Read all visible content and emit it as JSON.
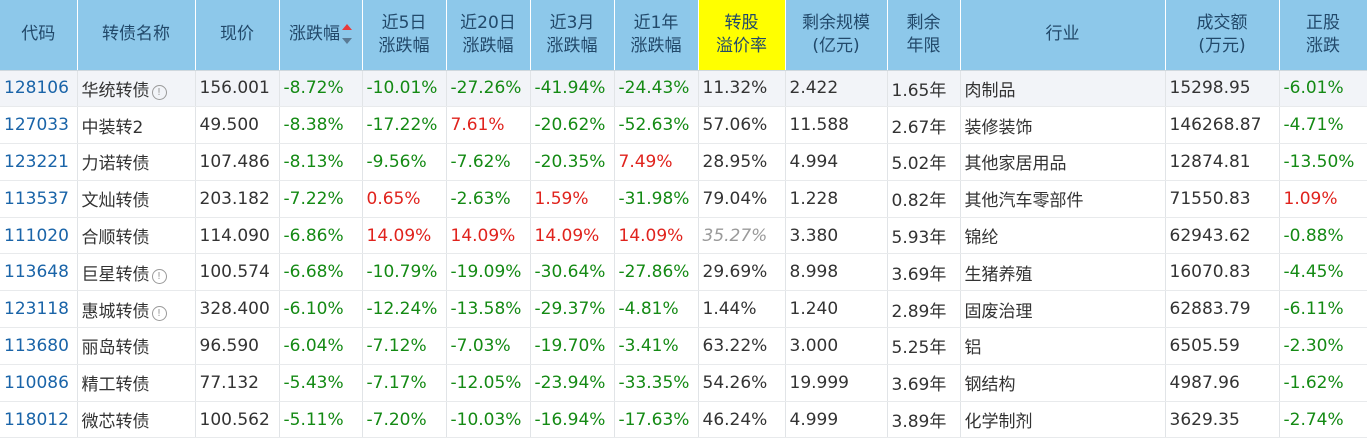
{
  "headers": [
    {
      "label": "代码"
    },
    {
      "label": "转债名称"
    },
    {
      "label": "现价"
    },
    {
      "label": "涨跌幅",
      "sort": "desc"
    },
    {
      "label": "近5日 涨跌幅"
    },
    {
      "label": "近20日 涨跌幅"
    },
    {
      "label": "近3月 涨跌幅"
    },
    {
      "label": "近1年 涨跌幅"
    },
    {
      "label": "转股 溢价率",
      "highlight": "#ffff00"
    },
    {
      "label": "剩余规模 (亿元)"
    },
    {
      "label": "剩余 年限"
    },
    {
      "label": "行业"
    },
    {
      "label": "成交额 (万元)"
    },
    {
      "label": "正股 涨跌"
    }
  ],
  "rows": [
    {
      "code": "128106",
      "name": "华统转债",
      "info": true,
      "price": "156.001",
      "chg": "-8.72%",
      "chg5d": "-10.01%",
      "chg20d": "-27.26%",
      "chg3m": "-41.94%",
      "chg1y": "-24.43%",
      "premium": "11.32%",
      "scale": "2.422",
      "years": "1.65年",
      "industry": "肉制品",
      "turnover": "15298.95",
      "stock_chg": "-6.01%"
    },
    {
      "code": "127033",
      "name": "中装转2",
      "info": false,
      "price": "49.500",
      "chg": "-8.38%",
      "chg5d": "-17.22%",
      "chg20d": "7.61%",
      "chg3m": "-20.62%",
      "chg1y": "-52.63%",
      "premium": "57.06%",
      "scale": "11.588",
      "years": "2.67年",
      "industry": "装修装饰",
      "turnover": "146268.87",
      "stock_chg": "-4.71%"
    },
    {
      "code": "123221",
      "name": "力诺转债",
      "info": false,
      "price": "107.486",
      "chg": "-8.13%",
      "chg5d": "-9.56%",
      "chg20d": "-7.62%",
      "chg3m": "-20.35%",
      "chg1y": "7.49%",
      "premium": "28.95%",
      "scale": "4.994",
      "years": "5.02年",
      "industry": "其他家居用品",
      "turnover": "12874.81",
      "stock_chg": "-13.50%"
    },
    {
      "code": "113537",
      "name": "文灿转债",
      "info": false,
      "price": "203.182",
      "chg": "-7.22%",
      "chg5d": "0.65%",
      "chg20d": "-2.63%",
      "chg3m": "1.59%",
      "chg1y": "-31.98%",
      "premium": "79.04%",
      "scale": "1.228",
      "years": "0.82年",
      "industry": "其他汽车零部件",
      "turnover": "71550.83",
      "stock_chg": "1.09%"
    },
    {
      "code": "111020",
      "name": "合顺转债",
      "info": false,
      "price": "114.090",
      "chg": "-6.86%",
      "chg5d": "14.09%",
      "chg20d": "14.09%",
      "chg3m": "14.09%",
      "chg1y": "14.09%",
      "premium": "35.27%",
      "premium_muted": true,
      "scale": "3.380",
      "years": "5.93年",
      "industry": "锦纶",
      "turnover": "62943.62",
      "stock_chg": "-0.88%"
    },
    {
      "code": "113648",
      "name": "巨星转债",
      "info": true,
      "price": "100.574",
      "chg": "-6.68%",
      "chg5d": "-10.79%",
      "chg20d": "-19.09%",
      "chg3m": "-30.64%",
      "chg1y": "-27.86%",
      "premium": "29.69%",
      "scale": "8.998",
      "years": "3.69年",
      "industry": "生猪养殖",
      "turnover": "16070.83",
      "stock_chg": "-4.45%"
    },
    {
      "code": "123118",
      "name": "惠城转债",
      "info": true,
      "price": "328.400",
      "chg": "-6.10%",
      "chg5d": "-12.24%",
      "chg20d": "-13.58%",
      "chg3m": "-29.37%",
      "chg1y": "-4.81%",
      "premium": "1.44%",
      "scale": "1.240",
      "years": "2.89年",
      "industry": "固废治理",
      "turnover": "62883.79",
      "stock_chg": "-6.11%"
    },
    {
      "code": "113680",
      "name": "丽岛转债",
      "info": false,
      "price": "96.590",
      "chg": "-6.04%",
      "chg5d": "-7.12%",
      "chg20d": "-7.03%",
      "chg3m": "-19.70%",
      "chg1y": "-3.41%",
      "premium": "63.22%",
      "scale": "3.000",
      "years": "5.25年",
      "industry": "铝",
      "turnover": "6505.59",
      "stock_chg": "-2.30%"
    },
    {
      "code": "110086",
      "name": "精工转债",
      "info": false,
      "price": "77.132",
      "chg": "-5.43%",
      "chg5d": "-7.17%",
      "chg20d": "-12.05%",
      "chg3m": "-23.94%",
      "chg1y": "-33.35%",
      "premium": "54.26%",
      "scale": "19.999",
      "years": "3.69年",
      "industry": "钢结构",
      "turnover": "4987.96",
      "stock_chg": "-1.62%"
    },
    {
      "code": "118012",
      "name": "微芯转债",
      "info": false,
      "price": "100.562",
      "chg": "-5.11%",
      "chg5d": "-7.20%",
      "chg20d": "-10.03%",
      "chg3m": "-16.94%",
      "chg1y": "-17.63%",
      "premium": "46.24%",
      "scale": "4.999",
      "years": "3.89年",
      "industry": "化学制剂",
      "turnover": "3629.35",
      "stock_chg": "-2.74%"
    }
  ],
  "colors": {
    "header_bg": "#8dc8ea",
    "highlight": "#ffff00",
    "up": "#e0231d",
    "down": "#148a14",
    "code": "#1a64a8"
  },
  "icons": {
    "info": "info-circle-icon",
    "sort": "sort-desc-icon"
  }
}
